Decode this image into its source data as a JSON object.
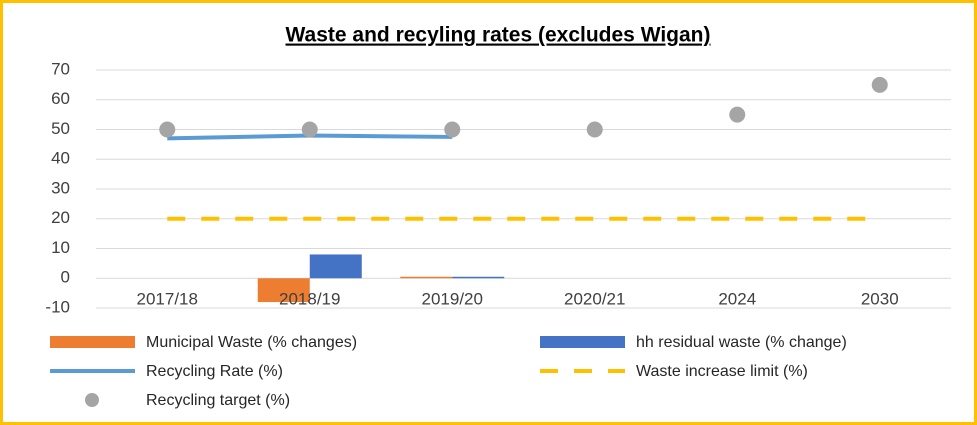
{
  "chart_data": {
    "type": "combo",
    "title": "Waste and recyling rates (excludes Wigan)",
    "categories": [
      "2017/18",
      "2018/19",
      "2019/20",
      "2020/21",
      "2024",
      "2030"
    ],
    "series": [
      {
        "name": "Municipal Waste (% changes)",
        "type": "bar",
        "color": "#ed7d31",
        "values": [
          null,
          -8,
          0.5,
          null,
          null,
          null
        ]
      },
      {
        "name": "hh residual waste (% change)",
        "type": "bar",
        "color": "#4472c4",
        "values": [
          null,
          8,
          0.5,
          null,
          null,
          null
        ]
      },
      {
        "name": "Recycling Rate (%)",
        "type": "line",
        "color": "#5b9bd5",
        "line_style": "solid",
        "values": [
          47,
          48,
          47.5,
          null,
          null,
          null
        ]
      },
      {
        "name": "Waste increase limit (%)",
        "type": "line",
        "color": "#ffc000",
        "line_style": "dashed",
        "values": [
          20,
          20,
          20,
          20,
          20,
          20
        ]
      },
      {
        "name": "Recycling target (%)",
        "type": "scatter",
        "color": "#a5a5a5",
        "values": [
          50,
          50,
          50,
          50,
          55,
          65
        ]
      }
    ],
    "ylim": [
      -10,
      70
    ],
    "yticks": [
      -10,
      0,
      10,
      20,
      30,
      40,
      50,
      60,
      70
    ],
    "grid": true,
    "legend": "bottom"
  }
}
